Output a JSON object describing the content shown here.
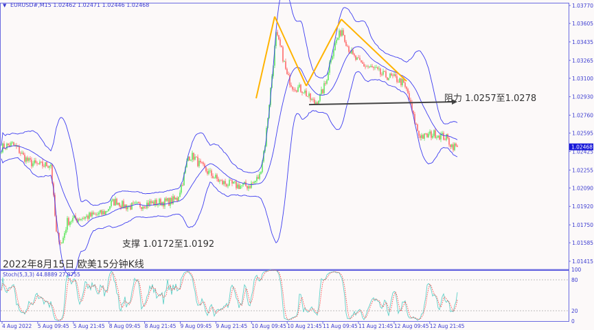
{
  "header": {
    "symbol": "EURUSD#,M15",
    "ohlc": "1.02462 1.02471 1.02446 1.02468"
  },
  "stoch_label": "Stoch(5,3,3) 44.8889 27.0755",
  "title_text": "2022年8月15日 欧美15分钟K线",
  "support_text": "支撑 1.0172至1.0192",
  "resistance_text": "阻力 1.0257至1.0278",
  "colors": {
    "bull": "#5ee65e",
    "bear": "#ff6a6a",
    "bands": "#3c3cf0",
    "pattern": "#ffb300",
    "arrow": "#444444",
    "stoch_main": "#5fd0c8",
    "stoch_signal": "#ff4040",
    "axis": "#6a6ae0"
  },
  "chart_data": {
    "type": "candlestick",
    "symbol": "EURUSD#",
    "timeframe": "M15",
    "ylim": [
      1.01415,
      1.0377
    ],
    "y_ticks": [
      "1.03770",
      "1.03605",
      "1.03435",
      "1.03265",
      "1.03100",
      "1.02930",
      "1.02760",
      "1.02595",
      "1.02425",
      "1.02255",
      "1.02090",
      "1.01920",
      "1.01750",
      "1.01585",
      "1.01415"
    ],
    "current_price": "1.02468",
    "x_ticks": [
      "4 Aug 2022",
      "5 Aug 09:45",
      "5 Aug 21:45",
      "8 Aug 09:45",
      "8 Aug 21:45",
      "9 Aug 09:45",
      "9 Aug 21:45",
      "10 Aug 09:45",
      "10 Aug 21:45",
      "11 Aug 09:45",
      "11 Aug 21:45",
      "12 Aug 09:45",
      "12 Aug 21:45"
    ],
    "close": [
      1.0246,
      1.0248,
      1.0249,
      1.0245,
      1.0238,
      1.0233,
      1.0231,
      1.023,
      1.023,
      1.0231,
      1.0167,
      1.0158,
      1.0178,
      1.018,
      1.0181,
      1.0182,
      1.0183,
      1.0184,
      1.0185,
      1.0187,
      1.0195,
      1.0197,
      1.0193,
      1.0192,
      1.0192,
      1.0193,
      1.0194,
      1.0195,
      1.0195,
      1.0196,
      1.0196,
      1.0197,
      1.0199,
      1.0215,
      1.0238,
      1.0238,
      1.0231,
      1.0226,
      1.0222,
      1.0218,
      1.0214,
      1.0213,
      1.0212,
      1.0211,
      1.0211,
      1.0211,
      1.0214,
      1.022,
      1.025,
      1.03,
      1.035,
      1.0335,
      1.0312,
      1.0303,
      1.0301,
      1.0299,
      1.0292,
      1.0287,
      1.0293,
      1.0305,
      1.033,
      1.0345,
      1.0355,
      1.034,
      1.033,
      1.0325,
      1.0322,
      1.032,
      1.0318,
      1.0314,
      1.0312,
      1.0311,
      1.0309,
      1.0306,
      1.0296,
      1.0274,
      1.0258,
      1.0256,
      1.0258,
      1.0259,
      1.0257,
      1.0255,
      1.0248,
      1.02468
    ],
    "indicators": [
      "Bollinger Bands",
      "Stochastic(5,3,3)"
    ],
    "stoch_levels": [
      "100",
      "80",
      "20",
      "0"
    ],
    "annotations": {
      "support": [
        1.0172,
        1.0192
      ],
      "resistance": [
        1.0257,
        1.0278
      ],
      "resistance_line_price": 1.0287
    }
  }
}
